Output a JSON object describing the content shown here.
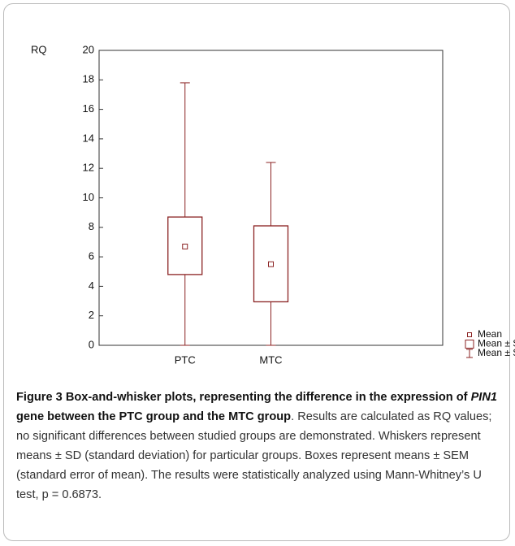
{
  "chart_data": {
    "type": "box",
    "ylabel": "RQ",
    "categories": [
      "PTC",
      "MTC"
    ],
    "means": [
      6.7,
      5.5
    ],
    "sem_low": [
      4.8,
      2.95
    ],
    "sem_high": [
      8.7,
      8.1
    ],
    "sd_low": [
      0,
      0
    ],
    "sd_high": [
      17.8,
      12.4
    ],
    "color": "#8b2323",
    "ylim": [
      0,
      20
    ],
    "yticks": [
      0,
      2,
      4,
      6,
      8,
      10,
      12,
      14,
      16,
      18,
      20
    ],
    "legend": [
      "Mean",
      "Mean ± SEM",
      "Mean ± SD"
    ],
    "legend_position": "lower right"
  },
  "caption": {
    "label": "Figure 3",
    "title_start": "Box-and-whisker plots, representing the difference in the expression of",
    "gene": "PIN1",
    "title_end": "gene between the PTC group and the MTC group",
    "body": ". Results are calculated as RQ values; no significant differences between studied groups are demonstrated. Whiskers represent means ± SD (standard deviation) for particular groups. Boxes represent means ± SEM (standard error of mean). The results were statistically analyzed using Mann-Whitney’s U test, p = 0.6873."
  }
}
